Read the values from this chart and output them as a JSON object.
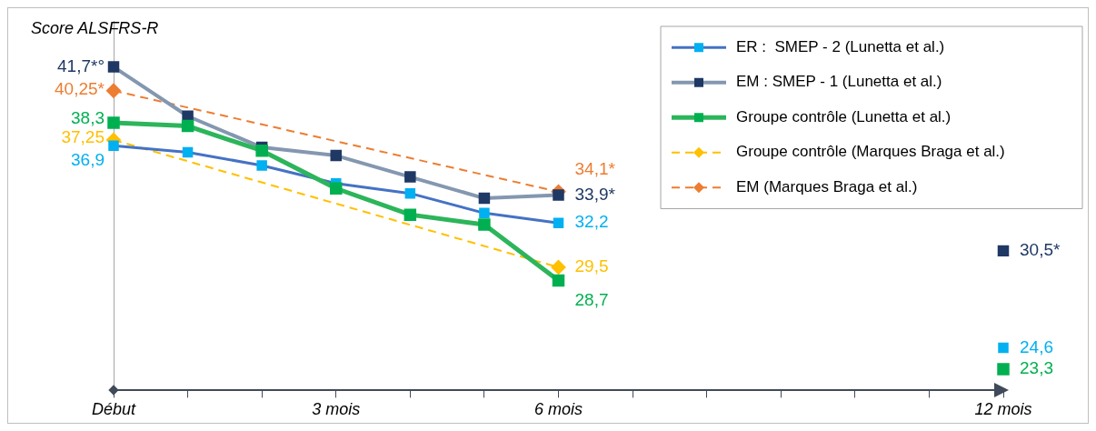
{
  "chart_data": {
    "type": "line",
    "ylabel": "Score ALSFRS-R",
    "x": [
      0,
      1,
      2,
      3,
      4,
      5,
      6,
      7,
      8,
      9,
      10,
      11,
      12
    ],
    "xlim": [
      0,
      12
    ],
    "xticks": [
      {
        "value": 0,
        "label": "Début"
      },
      {
        "value": 1,
        "label": null
      },
      {
        "value": 2,
        "label": null
      },
      {
        "value": 3,
        "label": "3 mois"
      },
      {
        "value": 4,
        "label": null
      },
      {
        "value": 5,
        "label": null
      },
      {
        "value": 6,
        "label": "6 mois"
      },
      {
        "value": 7,
        "label": null
      },
      {
        "value": 8,
        "label": null
      },
      {
        "value": 9,
        "label": null
      },
      {
        "value": 10,
        "label": null
      },
      {
        "value": 11,
        "label": null
      },
      {
        "value": 12,
        "label": "12 mois"
      }
    ],
    "ylim": [
      22,
      44.5
    ],
    "tick_labels": "x",
    "grid": false,
    "legend": "top right",
    "series": [
      {
        "name": "ER :  SMEP - 2 (Lunetta et al.)",
        "color": "#4472c4",
        "colors": [
          "#00b0f0",
          "#00b0f0",
          "#00b0f0",
          "#00b0f0",
          "#00b0f0",
          "#00b0f0",
          "#00b0f0",
          "#00b0f0",
          "#00b0f0",
          "#00b0f0",
          "#00b0f0",
          "#00b0f0",
          "#00b0f0"
        ],
        "marker": "square",
        "line_style": "solid",
        "values": [
          36.9,
          36.5,
          35.7,
          34.6,
          34.0,
          32.8,
          32.2,
          null,
          null,
          null,
          null,
          null,
          24.6
        ],
        "value_labels": [
          "36,9",
          null,
          null,
          null,
          null,
          null,
          "32,2",
          null,
          null,
          null,
          null,
          null,
          "24,6"
        ]
      },
      {
        "name": "EM : SMEP - 1 (Lunetta et al.)",
        "color": "#8497b0",
        "colors": [
          "#1f3864",
          "#1f3864",
          "#1f3864",
          "#1f3864",
          "#1f3864",
          "#1f3864",
          "#1f3864",
          "#1f3864",
          "#1f3864",
          "#1f3864",
          "#1f3864",
          "#1f3864",
          "#1f3864"
        ],
        "marker": "square",
        "line_style": "solid",
        "values": [
          41.7,
          38.7,
          36.8,
          36.3,
          35.0,
          33.7,
          33.9,
          null,
          null,
          null,
          null,
          null,
          30.5
        ],
        "value_labels": [
          "41,7*°",
          null,
          null,
          null,
          null,
          null,
          "33,9*",
          null,
          null,
          null,
          null,
          null,
          "30,5*"
        ]
      },
      {
        "name": "Groupe contrôle (Lunetta et al.)",
        "color": "#2cb55a",
        "colors": [
          "#00b050",
          "#00b050",
          "#00b050",
          "#00b050",
          "#00b050",
          "#00b050",
          "#00b050",
          "#00b050",
          "#00b050",
          "#00b050",
          "#00b050",
          "#00b050",
          "#00b050"
        ],
        "marker": "square",
        "line_style": "solid",
        "values": [
          38.3,
          38.1,
          36.6,
          34.3,
          32.7,
          32.1,
          28.7,
          null,
          null,
          null,
          null,
          null,
          23.3
        ],
        "value_labels": [
          "38,3",
          null,
          null,
          null,
          null,
          null,
          "28,7",
          null,
          null,
          null,
          null,
          null,
          "23,3"
        ]
      },
      {
        "name": "Groupe contrôle (Marques Braga et al.)",
        "color": "#ffc000",
        "marker": "diamond",
        "line_style": "dashed",
        "values": [
          37.25,
          null,
          null,
          null,
          null,
          null,
          29.5,
          null,
          null,
          null,
          null,
          null,
          null
        ],
        "value_labels": [
          "37,25",
          null,
          null,
          null,
          null,
          null,
          "29,5",
          null,
          null,
          null,
          null,
          null,
          null
        ]
      },
      {
        "name": "EM (Marques Braga et al.)",
        "color": "#ed7d31",
        "marker": "diamond",
        "line_style": "dashed",
        "values": [
          40.25,
          null,
          null,
          null,
          null,
          null,
          34.1,
          null,
          null,
          null,
          null,
          null,
          null
        ],
        "value_labels": [
          "40,25*",
          null,
          null,
          null,
          null,
          null,
          "34,1*",
          null,
          null,
          null,
          null,
          null,
          null
        ]
      }
    ]
  }
}
